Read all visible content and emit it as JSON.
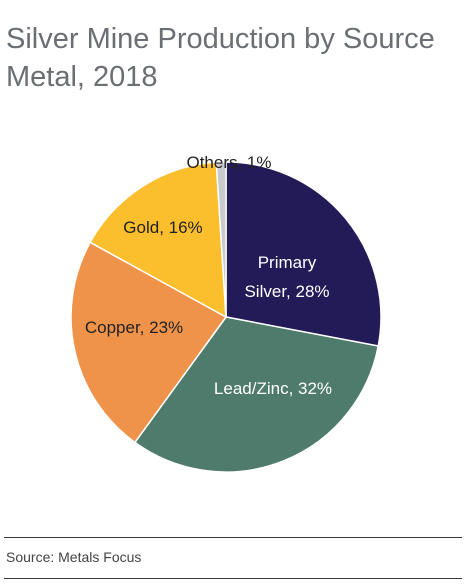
{
  "title_lines": [
    "Silver Mine Production by Source",
    "Metal, 2018"
  ],
  "source": "Source: Metals Focus",
  "chart_data": {
    "type": "pie",
    "title": "Silver Mine Production by Source Metal, 2018",
    "unit": "%",
    "slices": [
      {
        "label_lines": [
          "Primary",
          "Silver, 28%"
        ],
        "name": "Primary Silver",
        "value": 28,
        "color": "#231a58",
        "label_color": "#ffffff"
      },
      {
        "label_lines": [
          "Lead/Zinc, 32%"
        ],
        "name": "Lead/Zinc",
        "value": 32,
        "color": "#4e7b6b",
        "label_color": "#ffffff"
      },
      {
        "label_lines": [
          "Copper, 23%"
        ],
        "name": "Copper",
        "value": 23,
        "color": "#f0934a",
        "label_color": "#222222"
      },
      {
        "label_lines": [
          "Gold, 16%"
        ],
        "name": "Gold",
        "value": 16,
        "color": "#fbbe2c",
        "label_color": "#222222"
      },
      {
        "label_lines": [
          "Others, 1%"
        ],
        "name": "Others",
        "value": 1,
        "color": "#c9cacd",
        "label_color": "#222222"
      }
    ]
  }
}
